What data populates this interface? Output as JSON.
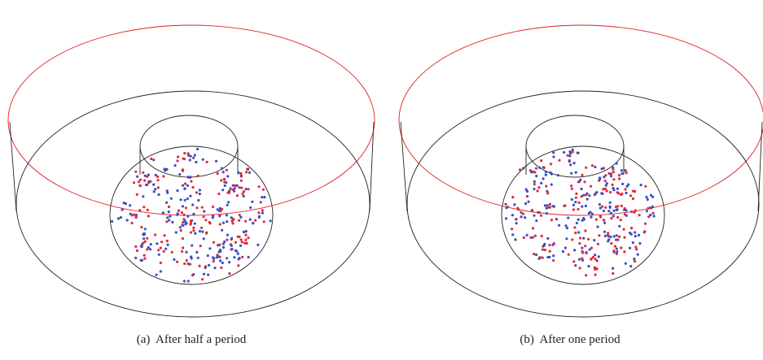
{
  "panels": [
    {
      "caption": "(a)  After half a period"
    },
    {
      "caption": "(b)  After one period"
    }
  ]
}
